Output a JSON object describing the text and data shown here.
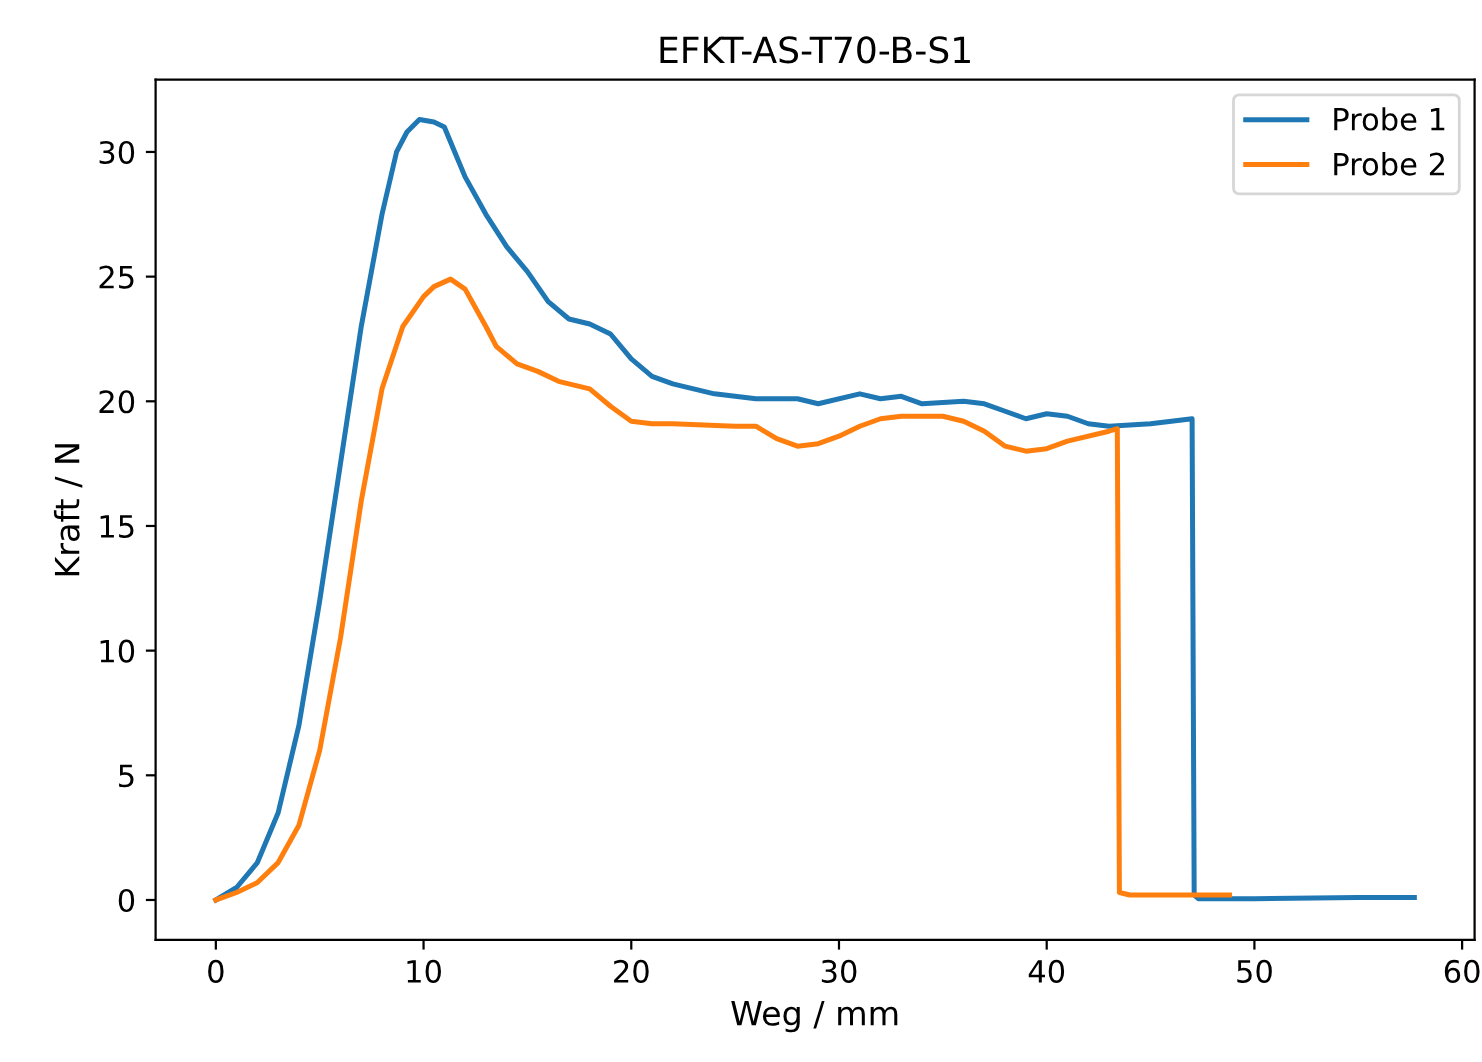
{
  "chart_data": {
    "type": "line",
    "title": "EFKT-AS-T70-B-S1",
    "xlabel": "Weg / mm",
    "ylabel": "Kraft / N",
    "xlim": [
      -2.9,
      60.6
    ],
    "xticks": [
      0,
      10,
      20,
      30,
      40,
      50,
      60
    ],
    "ylim": [
      -1.6,
      32.9
    ],
    "yticks": [
      0,
      5,
      10,
      15,
      20,
      25,
      30
    ],
    "grid": false,
    "legend": "top right",
    "line_style": "solid",
    "series": [
      {
        "name": "Probe 1",
        "color": "#1f77b4",
        "x": [
          0,
          1,
          2,
          3,
          4,
          5,
          6,
          7,
          8,
          8.7,
          9.2,
          9.8,
          10.5,
          11,
          11.5,
          12,
          13,
          14,
          15,
          16,
          17,
          18,
          19,
          20,
          21,
          22,
          24,
          26,
          28,
          29,
          31,
          32,
          33,
          34,
          36,
          37,
          38,
          39,
          40,
          41,
          42,
          43,
          45,
          46,
          47,
          47.1,
          47.3,
          50,
          55,
          57.7
        ],
        "values": [
          0,
          0.5,
          1.5,
          3.5,
          7,
          12,
          17.5,
          23,
          27.5,
          30,
          30.8,
          31.3,
          31.2,
          31,
          30,
          29,
          27.5,
          26.2,
          25.2,
          24,
          23.3,
          23.1,
          22.7,
          21.7,
          21,
          20.7,
          20.3,
          20.1,
          20.1,
          19.9,
          20.3,
          20.1,
          20.2,
          19.9,
          20,
          19.9,
          19.6,
          19.3,
          19.5,
          19.4,
          19.1,
          19,
          19.1,
          19.2,
          19.3,
          0.2,
          0.05,
          0.05,
          0.1,
          0.1
        ]
      },
      {
        "name": "Probe 2",
        "color": "#ff7f0e",
        "x": [
          0,
          1,
          2,
          3,
          4,
          5,
          6,
          7,
          8,
          9,
          10,
          10.5,
          11.3,
          12,
          13,
          13.5,
          14.5,
          15.5,
          16.5,
          18,
          19,
          20,
          21,
          22,
          25,
          26,
          27,
          28,
          29,
          30,
          31,
          32,
          33,
          35,
          36,
          37,
          38,
          39,
          40,
          41,
          43,
          43.4,
          43.5,
          44,
          48,
          48.8
        ],
        "values": [
          0,
          0.3,
          0.7,
          1.5,
          3,
          6,
          10.5,
          16,
          20.5,
          23,
          24.2,
          24.6,
          24.9,
          24.5,
          23,
          22.2,
          21.5,
          21.2,
          20.8,
          20.5,
          19.8,
          19.2,
          19.1,
          19.1,
          19,
          19,
          18.5,
          18.2,
          18.3,
          18.6,
          19,
          19.3,
          19.4,
          19.4,
          19.2,
          18.8,
          18.2,
          18,
          18.1,
          18.4,
          18.8,
          18.9,
          0.3,
          0.2,
          0.2,
          0.2
        ]
      }
    ]
  }
}
